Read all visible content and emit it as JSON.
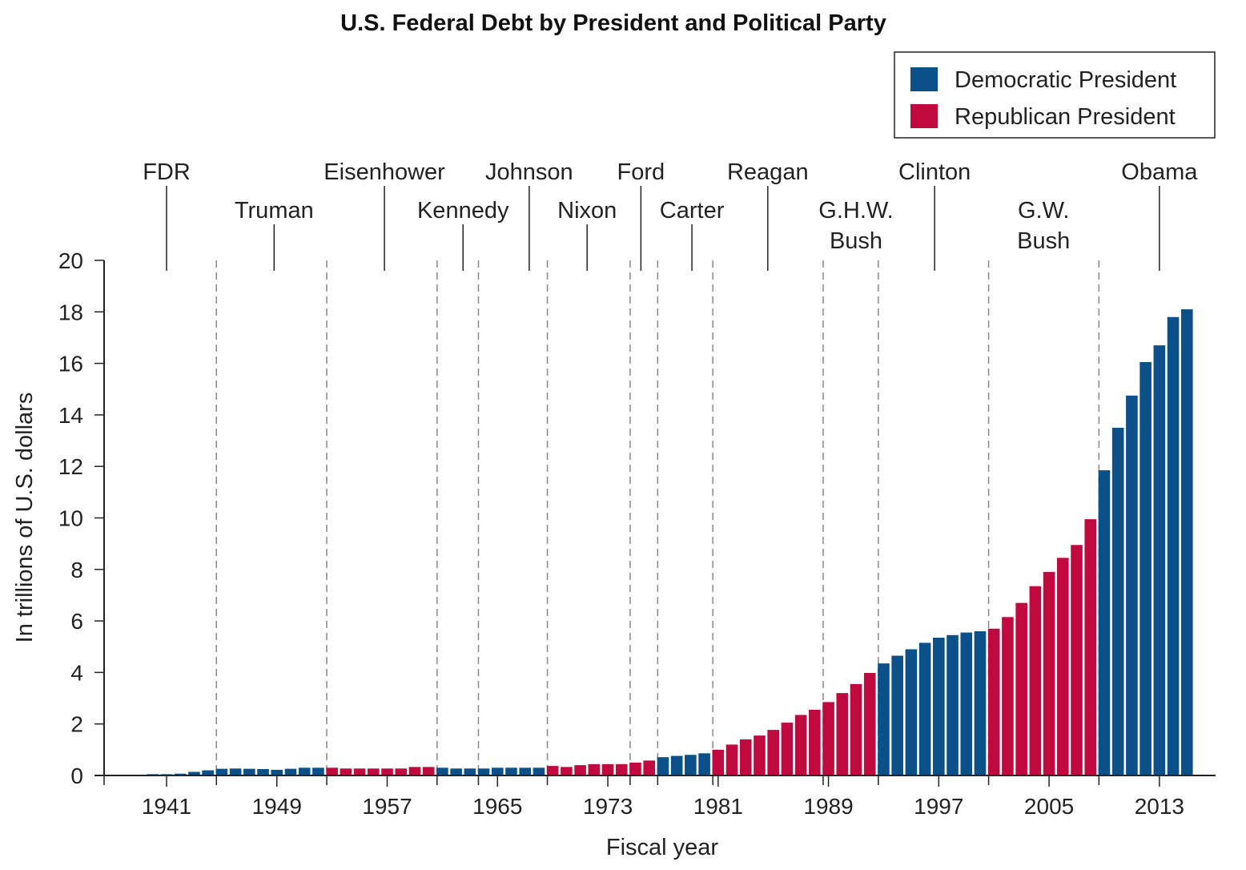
{
  "chart_data": {
    "type": "bar",
    "title": "U.S. Federal Debt by President and Political Party",
    "xlabel": "Fiscal year",
    "ylabel": "In trillions of U.S. dollars",
    "ylim": [
      0,
      20
    ],
    "yticks": [
      0,
      2,
      4,
      6,
      8,
      10,
      12,
      14,
      16,
      18,
      20
    ],
    "xticks": [
      1941,
      1949,
      1957,
      1965,
      1973,
      1981,
      1989,
      1997,
      2005,
      2013
    ],
    "grid": false,
    "legend_position": "top-right",
    "legend": [
      {
        "label": "Democratic President",
        "party": "D",
        "color": "#0b5089"
      },
      {
        "label": "Republican President",
        "party": "R",
        "color": "#c0093e"
      }
    ],
    "years": [
      1940,
      1941,
      1942,
      1943,
      1944,
      1945,
      1946,
      1947,
      1948,
      1949,
      1950,
      1951,
      1952,
      1953,
      1954,
      1955,
      1956,
      1957,
      1958,
      1959,
      1960,
      1961,
      1962,
      1963,
      1964,
      1965,
      1966,
      1967,
      1968,
      1969,
      1970,
      1971,
      1972,
      1973,
      1974,
      1975,
      1976,
      1977,
      1978,
      1979,
      1980,
      1981,
      1982,
      1983,
      1984,
      1985,
      1986,
      1987,
      1988,
      1989,
      1990,
      1991,
      1992,
      1993,
      1994,
      1995,
      1996,
      1997,
      1998,
      1999,
      2000,
      2001,
      2002,
      2003,
      2004,
      2005,
      2006,
      2007,
      2008,
      2009,
      2010,
      2011,
      2012,
      2013,
      2014,
      2015
    ],
    "values": [
      0.05,
      0.05,
      0.07,
      0.14,
      0.2,
      0.26,
      0.27,
      0.26,
      0.25,
      0.22,
      0.26,
      0.3,
      0.3,
      0.3,
      0.27,
      0.27,
      0.27,
      0.27,
      0.27,
      0.33,
      0.33,
      0.3,
      0.27,
      0.27,
      0.27,
      0.3,
      0.3,
      0.3,
      0.3,
      0.37,
      0.33,
      0.4,
      0.44,
      0.44,
      0.44,
      0.5,
      0.58,
      0.71,
      0.76,
      0.8,
      0.86,
      1.0,
      1.2,
      1.4,
      1.55,
      1.77,
      2.05,
      2.35,
      2.55,
      2.85,
      3.2,
      3.55,
      3.98,
      4.35,
      4.65,
      4.9,
      5.15,
      5.35,
      5.45,
      5.55,
      5.6,
      5.7,
      6.15,
      6.7,
      7.35,
      7.9,
      8.45,
      8.95,
      9.95,
      11.85,
      13.5,
      14.75,
      16.05,
      16.7,
      17.8,
      18.1
    ],
    "presidents": [
      {
        "name": "FDR",
        "lines": [
          "FDR"
        ],
        "party": "D",
        "start": 1940,
        "row": 1,
        "label_year": 1941
      },
      {
        "name": "Truman",
        "lines": [
          "Truman"
        ],
        "party": "D",
        "start": 1945,
        "row": 2,
        "label_year": 1948.8
      },
      {
        "name": "Eisenhower",
        "lines": [
          "Eisenhower"
        ],
        "party": "R",
        "start": 1953,
        "row": 1,
        "label_year": 1956.8
      },
      {
        "name": "Kennedy",
        "lines": [
          "Kennedy"
        ],
        "party": "D",
        "start": 1961,
        "row": 2,
        "label_year": 1962.5
      },
      {
        "name": "Johnson",
        "lines": [
          "Johnson"
        ],
        "party": "D",
        "start": 1964,
        "row": 1,
        "label_year": 1967.3
      },
      {
        "name": "Nixon",
        "lines": [
          "Nixon"
        ],
        "party": "R",
        "start": 1969,
        "row": 2,
        "label_year": 1971.5
      },
      {
        "name": "Ford",
        "lines": [
          "Ford"
        ],
        "party": "R",
        "start": 1975,
        "row": 1,
        "label_year": 1975.4
      },
      {
        "name": "Carter",
        "lines": [
          "Carter"
        ],
        "party": "D",
        "start": 1977,
        "row": 2,
        "label_year": 1979.1
      },
      {
        "name": "Reagan",
        "lines": [
          "Reagan"
        ],
        "party": "R",
        "start": 1981,
        "row": 1,
        "label_year": 1984.6
      },
      {
        "name": "G.H.W. Bush",
        "lines": [
          "G.H.W.",
          "Bush"
        ],
        "party": "R",
        "start": 1989,
        "row": 2,
        "label_year": 1991
      },
      {
        "name": "Clinton",
        "lines": [
          "Clinton"
        ],
        "party": "D",
        "start": 1993,
        "row": 1,
        "label_year": 1996.7
      },
      {
        "name": "G.W. Bush",
        "lines": [
          "G.W.",
          "Bush"
        ],
        "party": "R",
        "start": 2001,
        "row": 2,
        "label_year": 2004.6
      },
      {
        "name": "Obama",
        "lines": [
          "Obama"
        ],
        "party": "D",
        "start": 2009,
        "row": 1,
        "label_year": 2013
      }
    ]
  }
}
